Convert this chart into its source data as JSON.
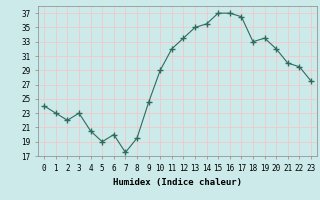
{
  "x": [
    0,
    1,
    2,
    3,
    4,
    5,
    6,
    7,
    8,
    9,
    10,
    11,
    12,
    13,
    14,
    15,
    16,
    17,
    18,
    19,
    20,
    21,
    22,
    23
  ],
  "y": [
    24.0,
    23.0,
    22.0,
    23.0,
    20.5,
    19.0,
    20.0,
    17.5,
    19.5,
    24.5,
    29.0,
    32.0,
    33.5,
    35.0,
    35.5,
    37.0,
    37.0,
    36.5,
    33.0,
    33.5,
    32.0,
    30.0,
    29.5,
    27.5
  ],
  "line_color": "#2e6b5e",
  "marker": "+",
  "marker_size": 4.0,
  "bg_color": "#cceaea",
  "grid_color": "#f0c8c8",
  "xlabel": "Humidex (Indice chaleur)",
  "ylim": [
    17,
    38
  ],
  "xlim": [
    -0.5,
    23.5
  ],
  "yticks": [
    17,
    19,
    21,
    23,
    25,
    27,
    29,
    31,
    33,
    35,
    37
  ],
  "xtick_labels": [
    "0",
    "1",
    "2",
    "3",
    "4",
    "5",
    "6",
    "7",
    "8",
    "9",
    "10",
    "11",
    "12",
    "13",
    "14",
    "15",
    "16",
    "17",
    "18",
    "19",
    "20",
    "21",
    "22",
    "23"
  ],
  "label_fontsize": 6.5,
  "tick_fontsize": 5.5
}
